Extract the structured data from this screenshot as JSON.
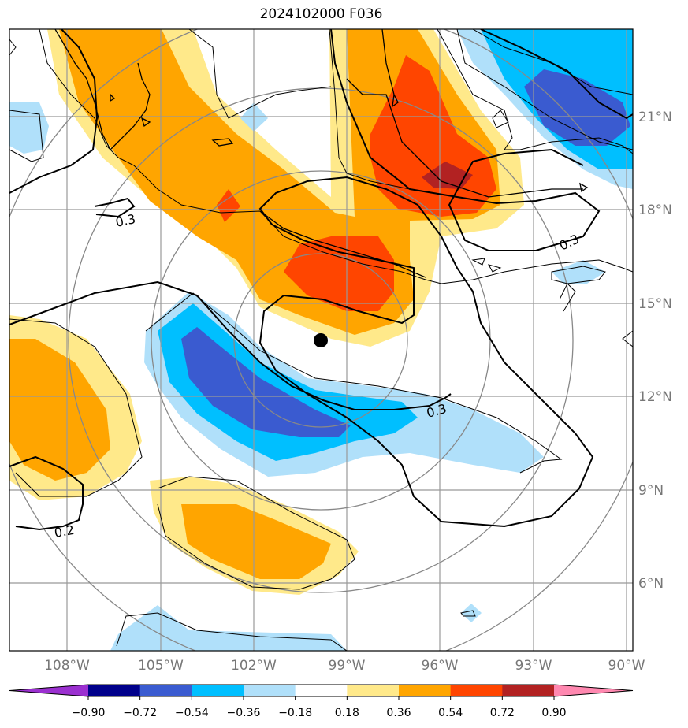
{
  "title": "2024102000 F036",
  "lat_labels": [
    "21°N",
    "18°N",
    "15°N",
    "12°N",
    "9°N",
    "6°N"
  ],
  "lon_labels": [
    "108°W",
    "105°W",
    "102°W",
    "99°W",
    "96°W",
    "93°W",
    "90°W"
  ],
  "contour_labels": [
    "0.3",
    "0.3",
    "0.3",
    "0.2"
  ],
  "colorbar": {
    "tick_labels": [
      "−0.90",
      "−0.72",
      "−0.54",
      "−0.36",
      "−0.18",
      "0.18",
      "0.36",
      "0.54",
      "0.72",
      "0.90"
    ],
    "colors": [
      "#9b30d0",
      "#00008b",
      "#3a5bd0",
      "#00bfff",
      "#b0e0fa",
      "#ffffff",
      "#ffe98a",
      "#ffa500",
      "#ff4500",
      "#b22222",
      "#ff88b0"
    ]
  },
  "marker": {
    "lat": 13.7,
    "lon": "99.8°W"
  }
}
